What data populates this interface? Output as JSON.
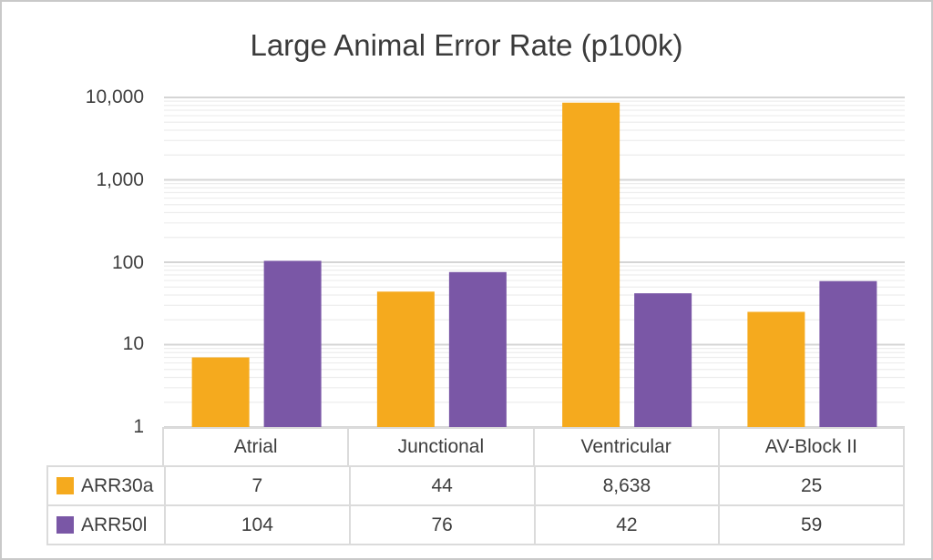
{
  "chart_data": {
    "type": "bar",
    "title": "Large Animal Error Rate (p100k)",
    "categories": [
      "Atrial",
      "Junctional",
      "Ventricular",
      "AV-Block II"
    ],
    "series": [
      {
        "name": "ARR30a",
        "color": "#F5AA1E",
        "values": [
          7,
          44,
          8638,
          25
        ],
        "display": [
          "7",
          "44",
          "8,638",
          "25"
        ]
      },
      {
        "name": "ARR50l",
        "color": "#7A57A6",
        "values": [
          104,
          76,
          42,
          59
        ],
        "display": [
          "104",
          "76",
          "42",
          "59"
        ]
      }
    ],
    "y_axis": {
      "scale": "log",
      "min": 1,
      "max": 10000,
      "tick_labels": [
        "10,000",
        "1,000",
        "100",
        "10",
        "1"
      ],
      "tick_values": [
        10000,
        1000,
        100,
        10,
        1
      ]
    },
    "xlabel": "",
    "ylabel": "",
    "legend_position": "table-left",
    "grid": {
      "major": true,
      "minor": true
    },
    "colors": {
      "grid_major": "#d5d5d5",
      "grid_minor": "#ededed",
      "text": "#3e3e3e",
      "table_border": "#dbdbdb"
    }
  }
}
